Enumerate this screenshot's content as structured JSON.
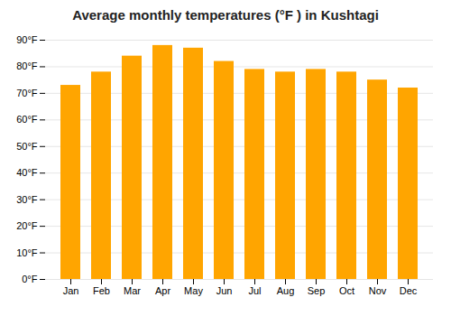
{
  "chart_data": {
    "type": "bar",
    "title": "Average monthly temperatures (°F ) in Kushtagi",
    "categories": [
      "Jan",
      "Feb",
      "Mar",
      "Apr",
      "May",
      "Jun",
      "Jul",
      "Aug",
      "Sep",
      "Oct",
      "Nov",
      "Dec"
    ],
    "values": [
      73,
      78,
      84,
      88,
      87,
      82,
      79,
      78,
      79,
      78,
      75,
      72
    ],
    "color": "#FFA500",
    "ylim": [
      0,
      90
    ],
    "yticks": [
      {
        "value": 0,
        "label": "0°F"
      },
      {
        "value": 10,
        "label": "10°F"
      },
      {
        "value": 20,
        "label": "20°F"
      },
      {
        "value": 30,
        "label": "30°F"
      },
      {
        "value": 40,
        "label": "40°F"
      },
      {
        "value": 50,
        "label": "50°F"
      },
      {
        "value": 60,
        "label": "60°F"
      },
      {
        "value": 70,
        "label": "70°F"
      },
      {
        "value": 80,
        "label": "80°F"
      },
      {
        "value": 90,
        "label": "90°F"
      }
    ],
    "grid": true
  }
}
